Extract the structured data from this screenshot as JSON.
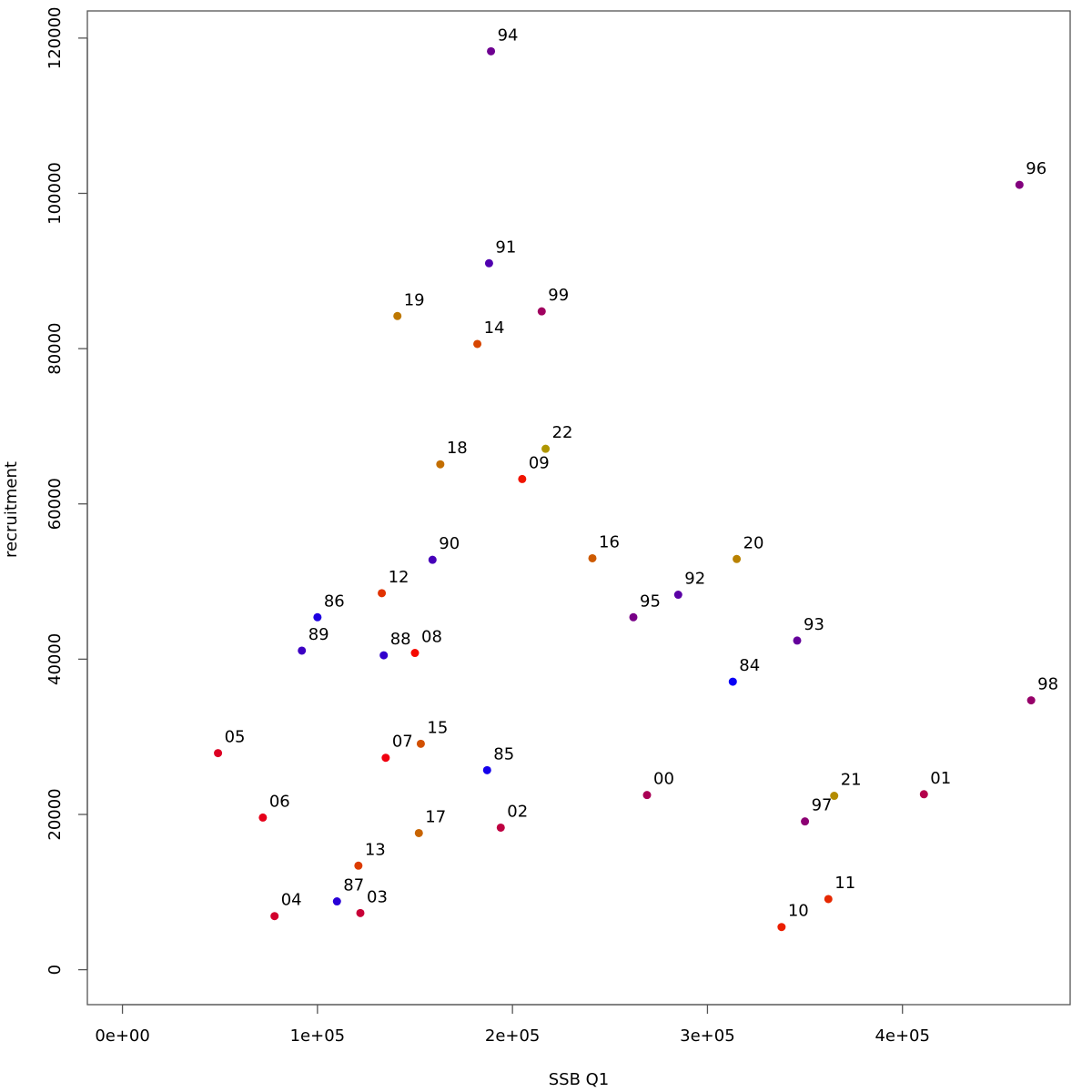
{
  "chart_data": {
    "type": "scatter",
    "title": "",
    "xlabel": "SSB Q1",
    "ylabel": "recruitment",
    "xlim": [
      -18000,
      486000
    ],
    "ylim": [
      -4500,
      123500
    ],
    "xticks": [
      0,
      100000,
      200000,
      300000,
      400000
    ],
    "xtick_labels": [
      "0e+00",
      "1e+05",
      "2e+05",
      "3e+05",
      "4e+05"
    ],
    "yticks": [
      0,
      20000,
      40000,
      60000,
      80000,
      100000,
      120000
    ],
    "ytick_labels": [
      "0",
      "20000",
      "40000",
      "60000",
      "80000",
      "100000",
      "120000"
    ],
    "grid": false,
    "legend": "none",
    "color_scale": {
      "start": "#0000ff",
      "end": "#ff0000",
      "note": "point color shifts from blue to red across years"
    },
    "points": [
      {
        "label": "84",
        "x": 313000,
        "y": 37100,
        "color": "#0a00f5"
      },
      {
        "label": "85",
        "x": 187000,
        "y": 25700,
        "color": "#1400eb"
      },
      {
        "label": "86",
        "x": 100000,
        "y": 45400,
        "color": "#1e00e1"
      },
      {
        "label": "87",
        "x": 110000,
        "y": 8800,
        "color": "#2800d7"
      },
      {
        "label": "88",
        "x": 134000,
        "y": 40500,
        "color": "#3200cd"
      },
      {
        "label": "89",
        "x": 92000,
        "y": 41100,
        "color": "#3c00c3"
      },
      {
        "label": "90",
        "x": 159000,
        "y": 52800,
        "color": "#4600b9"
      },
      {
        "label": "91",
        "x": 188000,
        "y": 91000,
        "color": "#5000af"
      },
      {
        "label": "92",
        "x": 285000,
        "y": 48300,
        "color": "#5a00a5"
      },
      {
        "label": "93",
        "x": 346000,
        "y": 42400,
        "color": "#64009b"
      },
      {
        "label": "94",
        "x": 189000,
        "y": 118300,
        "color": "#6e0091"
      },
      {
        "label": "95",
        "x": 262000,
        "y": 45400,
        "color": "#780087"
      },
      {
        "label": "96",
        "x": 460000,
        "y": 101100,
        "color": "#82007d"
      },
      {
        "label": "97",
        "x": 350000,
        "y": 19100,
        "color": "#8c0073"
      },
      {
        "label": "98",
        "x": 466000,
        "y": 34700,
        "color": "#960069"
      },
      {
        "label": "99",
        "x": 215000,
        "y": 84800,
        "color": "#a0005f"
      },
      {
        "label": "00",
        "x": 269000,
        "y": 22500,
        "color": "#aa0055"
      },
      {
        "label": "01",
        "x": 411000,
        "y": 22600,
        "color": "#b4004b"
      },
      {
        "label": "02",
        "x": 194000,
        "y": 18300,
        "color": "#be0041"
      },
      {
        "label": "03",
        "x": 122000,
        "y": 7300,
        "color": "#c80037"
      },
      {
        "label": "04",
        "x": 78000,
        "y": 6900,
        "color": "#d2002d"
      },
      {
        "label": "05",
        "x": 49000,
        "y": 27900,
        "color": "#dc0023"
      },
      {
        "label": "06",
        "x": 72000,
        "y": 19600,
        "color": "#e60019"
      },
      {
        "label": "07",
        "x": 135000,
        "y": 27300,
        "color": "#f0000f"
      },
      {
        "label": "08",
        "x": 150000,
        "y": 40800,
        "color": "#f50a00"
      },
      {
        "label": "09",
        "x": 205000,
        "y": 63200,
        "color": "#f01400"
      },
      {
        "label": "10",
        "x": 338000,
        "y": 5500,
        "color": "#eb1e00"
      },
      {
        "label": "11",
        "x": 362000,
        "y": 9100,
        "color": "#e62800"
      },
      {
        "label": "12",
        "x": 133000,
        "y": 48500,
        "color": "#e13200"
      },
      {
        "label": "13",
        "x": 121000,
        "y": 13400,
        "color": "#dc3c00"
      },
      {
        "label": "14",
        "x": 182000,
        "y": 80600,
        "color": "#d74600"
      },
      {
        "label": "15",
        "x": 153000,
        "y": 29100,
        "color": "#d25000"
      },
      {
        "label": "16",
        "x": 241000,
        "y": 53000,
        "color": "#cd5a00"
      },
      {
        "label": "17",
        "x": 152000,
        "y": 17600,
        "color": "#c86400"
      },
      {
        "label": "18",
        "x": 163000,
        "y": 65100,
        "color": "#c36e00"
      },
      {
        "label": "19",
        "x": 141000,
        "y": 84200,
        "color": "#be7800"
      },
      {
        "label": "20",
        "x": 315000,
        "y": 52900,
        "color": "#b98200"
      },
      {
        "label": "21",
        "x": 365000,
        "y": 22400,
        "color": "#b48c00"
      },
      {
        "label": "22",
        "x": 217000,
        "y": 67100,
        "color": "#af9600"
      }
    ]
  }
}
